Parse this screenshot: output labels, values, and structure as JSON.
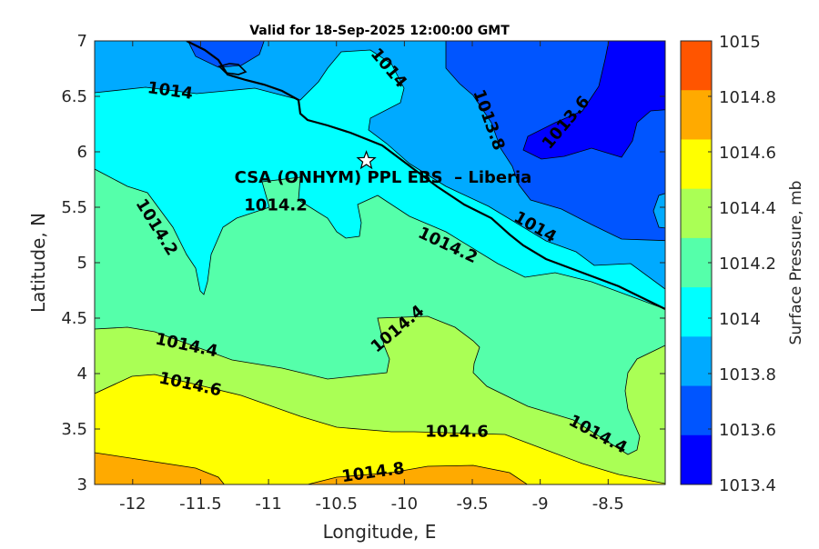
{
  "chart_data": {
    "type": "contour",
    "title": "Valid for 18-Sep-2025 12:00:00 GMT",
    "xlabel": "Longitude, E",
    "ylabel": "Latitude, N",
    "xlim": [
      -12.28,
      -8.08
    ],
    "ylim": [
      3,
      7
    ],
    "xticks": [
      -12,
      -11.5,
      -11,
      -10.5,
      -10,
      -9.5,
      -9,
      -8.5
    ],
    "yticks": [
      3,
      3.5,
      4,
      4.5,
      5,
      5.5,
      6,
      6.5,
      7
    ],
    "colorbar": {
      "label": "Surface Pressure, mb",
      "ticks": [
        "1013.4",
        "1013.6",
        "1013.8",
        "1014",
        "1014.2",
        "1014.4",
        "1014.6",
        "1014.8",
        "1015"
      ],
      "colors": [
        "#0000FF",
        "#0055FF",
        "#00AAFF",
        "#00FFFF",
        "#55FFAA",
        "#AAFF55",
        "#FFFF00",
        "#FFAA00",
        "#FF5500"
      ]
    },
    "contour_levels": [
      1013.6,
      1013.8,
      1014,
      1014.2,
      1014.4,
      1014.6,
      1014.8
    ],
    "contour_labels": [
      "1014",
      "1014",
      "1013.8",
      "1013.6",
      "1014.2",
      "1014.2",
      "1014",
      "1014.2",
      "1014.4",
      "1014.4",
      "1014.6",
      "1014.6",
      "1014.4",
      "1014.8"
    ],
    "station": {
      "name": "CSA (ONHYM) PPL EBS  – Liberia",
      "lon": -10.28,
      "lat": 5.92,
      "marker": "star-icon"
    }
  }
}
